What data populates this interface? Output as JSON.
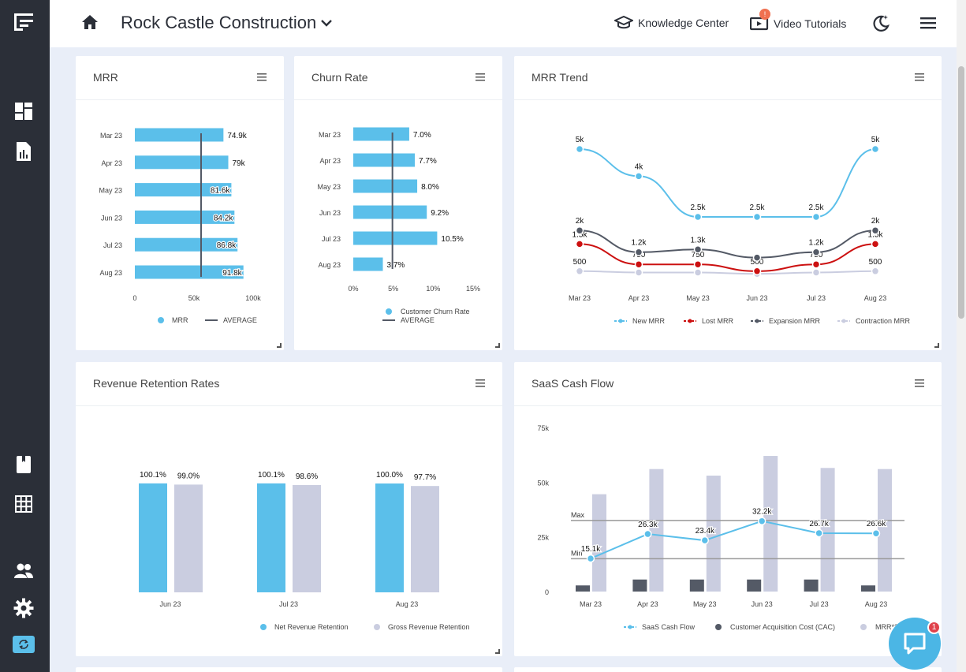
{
  "colors": {
    "sidebar": "#2b2f38",
    "accent": "#5bbfea",
    "gray_bar": "#cacde0",
    "dark": "#545a66",
    "red": "#cc1010",
    "badge": "#f07050"
  },
  "header": {
    "company": "Rock Castle Construction",
    "knowledge_center": "Knowledge Center",
    "video_tutorials": "Video Tutorials",
    "video_badge": "!"
  },
  "sidebar": {
    "icons": [
      "logo-icon",
      "dashboard-icon",
      "report-icon",
      "book-icon",
      "grid-icon",
      "users-icon",
      "gear-icon",
      "sync-icon"
    ]
  },
  "chat": {
    "badge": "1"
  },
  "cards": {
    "mrr": {
      "title": "MRR"
    },
    "churn": {
      "title": "Churn Rate"
    },
    "trend": {
      "title": "MRR Trend"
    },
    "retention": {
      "title": "Revenue Retention Rates"
    },
    "cashflow": {
      "title": "SaaS Cash Flow"
    }
  },
  "chart_data": [
    {
      "id": "mrr",
      "type": "bar",
      "orientation": "horizontal",
      "categories": [
        "Mar 23",
        "Apr 23",
        "May 23",
        "Jun 23",
        "Jul 23",
        "Aug 23"
      ],
      "values": [
        74.9,
        79,
        81.6,
        84.2,
        86.8,
        91.8
      ],
      "labels": [
        "74.9k",
        "79k",
        "81.6k",
        "84.2k",
        "86.8k",
        "91.8k"
      ],
      "average": 56,
      "xlim": [
        0,
        100
      ],
      "xticks": [
        "0",
        "50k",
        "100k"
      ],
      "legend": [
        "MRR",
        "AVERAGE"
      ]
    },
    {
      "id": "churn",
      "type": "bar",
      "orientation": "horizontal",
      "categories": [
        "Mar 23",
        "Apr 23",
        "May 23",
        "Jun 23",
        "Jul 23",
        "Aug 23"
      ],
      "values": [
        7.0,
        7.7,
        8.0,
        9.2,
        10.5,
        3.7
      ],
      "labels": [
        "7.0%",
        "7.7%",
        "8.0%",
        "9.2%",
        "10.5%",
        "3.7%"
      ],
      "average": 4.9,
      "xlim": [
        0,
        15
      ],
      "xticks": [
        "0%",
        "5%",
        "10%",
        "15%"
      ],
      "legend": [
        "Customer Churn Rate",
        "AVERAGE"
      ]
    },
    {
      "id": "trend",
      "type": "line",
      "categories": [
        "Mar 23",
        "Apr 23",
        "May 23",
        "Jun 23",
        "Jul 23",
        "Aug 23"
      ],
      "ylim": [
        0,
        5600
      ],
      "series": [
        {
          "name": "New MRR",
          "values": [
            5000,
            4000,
            2500,
            2500,
            2500,
            5000
          ],
          "labels": [
            "5k",
            "4k",
            "2.5k",
            "2.5k",
            "2.5k",
            "5k"
          ],
          "color": "#5bbfea"
        },
        {
          "name": "Lost MRR",
          "values": [
            1500,
            750,
            750,
            500,
            750,
            1500
          ],
          "labels": [
            "1.5k",
            "750",
            "750",
            "500",
            "750",
            "1.5k"
          ],
          "color": "#cc1010"
        },
        {
          "name": "Expansion MRR",
          "values": [
            2000,
            1200,
            1300,
            1000,
            1200,
            2000
          ],
          "labels": [
            "2k",
            "1.2k",
            "1.3k",
            "",
            "1.2k",
            "2k"
          ],
          "color": "#545a66"
        },
        {
          "name": "Contraction MRR",
          "values": [
            500,
            450,
            450,
            400,
            450,
            500
          ],
          "labels": [
            "500",
            "",
            "",
            "",
            "",
            "500"
          ],
          "color": "#cacde0"
        }
      ]
    },
    {
      "id": "retention",
      "type": "bar",
      "categories": [
        "Jun 23",
        "Jul 23",
        "Aug 23"
      ],
      "series": [
        {
          "name": "Net Revenue Retention",
          "values": [
            100.1,
            100.1,
            100.0
          ],
          "labels": [
            "100.1%",
            "100.1%",
            "100.0%"
          ],
          "color": "#5bbfea"
        },
        {
          "name": "Gross Revenue Retention",
          "values": [
            99.0,
            98.6,
            97.7
          ],
          "labels": [
            "99.0%",
            "98.6%",
            "97.7%"
          ],
          "color": "#cacde0"
        }
      ]
    },
    {
      "id": "cashflow",
      "type": "bar",
      "categories": [
        "Mar 23",
        "Apr 23",
        "May 23",
        "Jun 23",
        "Jul 23",
        "Aug 23"
      ],
      "ylim": [
        0,
        75000
      ],
      "yticks": [
        "0",
        "25k",
        "50k",
        "75k"
      ],
      "series": [
        {
          "name": "SaaS Cash Flow",
          "kind": "line",
          "values": [
            15100,
            26300,
            23400,
            32200,
            26700,
            26600
          ],
          "labels": [
            "15.1k",
            "26.3k",
            "23.4k",
            "32.2k",
            "26.7k",
            "26.6k"
          ],
          "color": "#5bbfea"
        },
        {
          "name": "Customer Acquisition Cost (CAC)",
          "kind": "bar",
          "values": [
            2800,
            5500,
            5500,
            5500,
            5500,
            2800
          ],
          "color": "#545a66"
        },
        {
          "name": "MRR*3",
          "kind": "bar",
          "values": [
            44500,
            56000,
            53000,
            62000,
            56500,
            56000
          ],
          "color": "#cacde0"
        }
      ],
      "legend": [
        "SaaS Cash Flow",
        "Customer Acquisition Cost (CAC)",
        "MRR*3"
      ],
      "reference_lines": [
        {
          "label": "Max",
          "value": 32500
        },
        {
          "label": "Min",
          "value": 15000
        }
      ]
    }
  ]
}
